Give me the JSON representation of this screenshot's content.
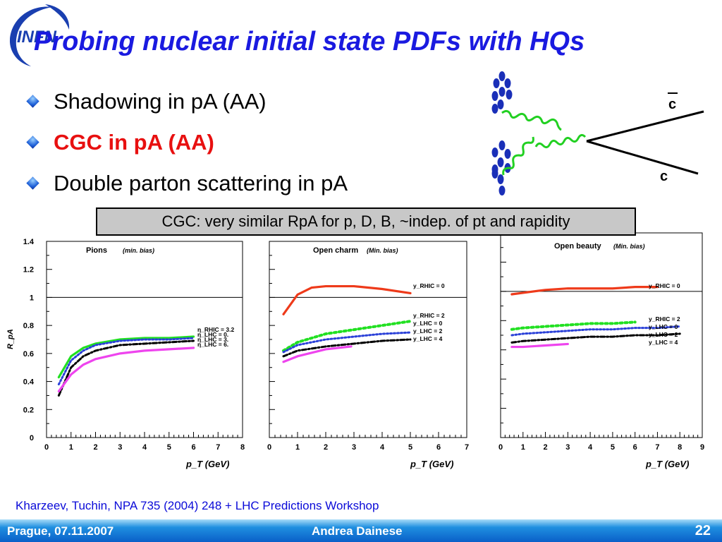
{
  "slide": {
    "title": "Probing nuclear initial state PDFs with HQs",
    "logo_text": "INFN",
    "bullets": [
      {
        "text": "Shadowing in pA (AA)",
        "highlight": false
      },
      {
        "text": "CGC in pA (AA)",
        "highlight": true
      },
      {
        "text": "Double parton scattering in pA",
        "highlight": false
      }
    ],
    "diagram": {
      "quark_top": "c",
      "quark_bottom": "c"
    },
    "callout": "CGC: very similar RpA for p, D, B, ~indep. of pt and rapidity",
    "footnote": "Kharzeev, Tuchin, NPA 735 (2004) 248 + LHC Predictions Workshop",
    "footer": {
      "location_date": "Prague, 07.11.2007",
      "author": "Andrea Dainese",
      "page": "22"
    },
    "colors": {
      "title": "#1a1ae0",
      "highlight": "#e81010",
      "footer": "#0a5fc8"
    }
  },
  "chart_data": [
    {
      "type": "line",
      "title": "Pions",
      "subtitle": "(min. bias)",
      "xlabel": "p_T (GeV)",
      "ylabel": "R_pA",
      "xlim": [
        0,
        8
      ],
      "ylim": [
        0,
        1.4
      ],
      "xticks": [
        "0",
        "1",
        "2",
        "3",
        "4",
        "5",
        "6",
        "7",
        "8"
      ],
      "yticks": [
        "0",
        "0.2",
        "0.4",
        "0.6",
        "0.8",
        "1",
        "1.2",
        "1.4"
      ],
      "reference_line": 1,
      "series": [
        {
          "name": "η_RHIC = 3.2",
          "style": "solid",
          "color": "#22e022",
          "x": [
            0.5,
            1,
            1.5,
            2,
            3,
            4,
            5,
            6
          ],
          "y": [
            0.43,
            0.58,
            0.64,
            0.67,
            0.7,
            0.71,
            0.71,
            0.72
          ]
        },
        {
          "name": "η_LHC = 0.",
          "style": "dotted",
          "color": "#2a40d8",
          "x": [
            0.5,
            1,
            1.5,
            2,
            3,
            4,
            5,
            6
          ],
          "y": [
            0.38,
            0.55,
            0.62,
            0.66,
            0.69,
            0.7,
            0.7,
            0.71
          ]
        },
        {
          "name": "η_LHC = 3.",
          "style": "dashdot",
          "color": "#000000",
          "x": [
            0.5,
            1,
            1.5,
            2,
            3,
            4,
            5,
            6
          ],
          "y": [
            0.3,
            0.5,
            0.58,
            0.62,
            0.66,
            0.67,
            0.68,
            0.69
          ]
        },
        {
          "name": "η_LHC = 6.",
          "style": "solid",
          "color": "#ee44ee",
          "x": [
            0.5,
            1,
            1.5,
            2,
            3,
            4,
            5,
            6
          ],
          "y": [
            0.33,
            0.45,
            0.52,
            0.56,
            0.6,
            0.62,
            0.63,
            0.64
          ]
        }
      ]
    },
    {
      "type": "line",
      "title": "Open charm",
      "subtitle": "(Min. bias)",
      "xlabel": "p_T (GeV)",
      "xlim": [
        0,
        7
      ],
      "ylim": [
        0,
        1.4
      ],
      "xticks": [
        "0",
        "1",
        "2",
        "3",
        "4",
        "5",
        "6",
        "7"
      ],
      "reference_line": 1,
      "series": [
        {
          "name": "y_RHIC = 0",
          "style": "solid",
          "color": "#ee3a1a",
          "x": [
            0.5,
            1,
            1.5,
            2,
            3,
            4,
            5
          ],
          "y": [
            0.88,
            1.02,
            1.07,
            1.08,
            1.08,
            1.06,
            1.03
          ]
        },
        {
          "name": "y_RHIC = 2",
          "style": "dotted-bold",
          "color": "#22e022",
          "x": [
            0.5,
            1,
            2,
            3,
            4,
            5
          ],
          "y": [
            0.62,
            0.68,
            0.74,
            0.77,
            0.8,
            0.83
          ]
        },
        {
          "name": "y_LHC = 0",
          "style": "dotted",
          "color": "#2a40d8",
          "x": [
            0.5,
            1,
            2,
            3,
            4,
            5
          ],
          "y": [
            0.61,
            0.66,
            0.7,
            0.72,
            0.74,
            0.75
          ]
        },
        {
          "name": "y_LHC = 2",
          "style": "dashdot",
          "color": "#000000",
          "x": [
            0.5,
            1,
            2,
            3,
            4,
            5
          ],
          "y": [
            0.58,
            0.62,
            0.65,
            0.67,
            0.69,
            0.7
          ]
        },
        {
          "name": "y_LHC = 4",
          "style": "solid",
          "color": "#ee44ee",
          "x": [
            0.5,
            1,
            2,
            2.9
          ],
          "y": [
            0.54,
            0.58,
            0.63,
            0.65
          ]
        }
      ]
    },
    {
      "type": "line",
      "title": "Open beauty",
      "subtitle": "(Min. bias)",
      "xlabel": "p_T (GeV)",
      "xlim": [
        0,
        9
      ],
      "ylim": [
        0,
        1.4
      ],
      "xticks": [
        "0",
        "1",
        "2",
        "3",
        "4",
        "5",
        "6",
        "7",
        "8",
        "9"
      ],
      "reference_line": 1,
      "series": [
        {
          "name": "y_RHIC = 0",
          "style": "solid",
          "color": "#ee3a1a",
          "x": [
            0.5,
            1,
            2,
            3,
            4,
            5,
            6,
            6.5,
            7
          ],
          "y": [
            0.98,
            0.99,
            1.01,
            1.02,
            1.02,
            1.02,
            1.03,
            1.03,
            1.03
          ]
        },
        {
          "name": "y_RHIC = 2",
          "style": "dotted-bold",
          "color": "#22e022",
          "x": [
            0.5,
            1,
            2,
            3,
            4,
            5,
            6
          ],
          "y": [
            0.74,
            0.75,
            0.76,
            0.77,
            0.78,
            0.78,
            0.79
          ]
        },
        {
          "name": "y_LHC = 0",
          "style": "dotted",
          "color": "#2a40d8",
          "x": [
            0.5,
            1,
            2,
            3,
            4,
            5,
            6,
            7,
            8
          ],
          "y": [
            0.7,
            0.71,
            0.72,
            0.73,
            0.74,
            0.74,
            0.75,
            0.75,
            0.76
          ]
        },
        {
          "name": "y_LHC = 2",
          "style": "dashdot",
          "color": "#000000",
          "x": [
            0.5,
            1,
            2,
            3,
            4,
            5,
            6,
            7,
            8
          ],
          "y": [
            0.65,
            0.66,
            0.67,
            0.68,
            0.69,
            0.69,
            0.7,
            0.7,
            0.71
          ]
        },
        {
          "name": "y_LHC = 4",
          "style": "solid",
          "color": "#ee44ee",
          "x": [
            0.5,
            1,
            2,
            3
          ],
          "y": [
            0.62,
            0.62,
            0.63,
            0.64
          ]
        }
      ]
    }
  ]
}
